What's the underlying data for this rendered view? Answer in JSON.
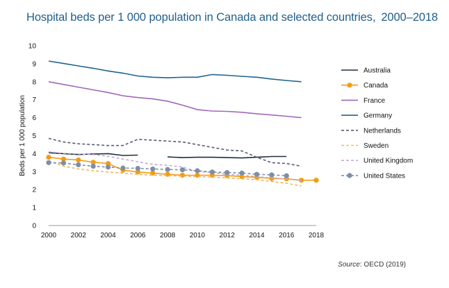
{
  "title": "Hospital beds per 1 000 population in Canada and selected countries,",
  "title_years": "2000–2018",
  "source": {
    "label": "Source",
    "text": ": OECD (2019)"
  },
  "chart_data": {
    "type": "line",
    "ylabel": "Beds per 1 000 population",
    "xlabel": "",
    "xlim": [
      2000,
      2018
    ],
    "ylim": [
      0,
      10
    ],
    "x_ticks": [
      2000,
      2002,
      2004,
      2006,
      2008,
      2010,
      2012,
      2014,
      2016,
      2018
    ],
    "y_ticks": [
      0,
      1,
      2,
      3,
      4,
      5,
      6,
      7,
      8,
      9,
      10
    ],
    "grid": false,
    "legend": "right",
    "series": [
      {
        "name": "Australia",
        "color": "#1d2e40",
        "style": "solid",
        "marker": false,
        "points": [
          [
            2000,
            4.05
          ],
          [
            2001,
            4.0
          ],
          [
            2002,
            3.95
          ],
          [
            2003,
            3.98
          ],
          [
            2004,
            4.0
          ],
          [
            2005,
            3.9
          ],
          [
            2006,
            3.92
          ],
          null,
          [
            2008,
            3.82
          ],
          [
            2009,
            3.78
          ],
          [
            2010,
            3.8
          ],
          [
            2011,
            3.8
          ],
          [
            2012,
            3.78
          ],
          [
            2013,
            3.76
          ],
          [
            2014,
            3.8
          ],
          [
            2015,
            3.84
          ],
          [
            2016,
            3.84
          ]
        ]
      },
      {
        "name": "Canada",
        "color": "#f39c12",
        "style": "solid",
        "marker": true,
        "points": [
          [
            2000,
            3.8
          ],
          [
            2001,
            3.7
          ],
          [
            2002,
            3.65
          ],
          [
            2003,
            3.52
          ],
          [
            2004,
            3.45
          ],
          [
            2005,
            3.08
          ],
          [
            2006,
            2.98
          ],
          [
            2007,
            2.92
          ],
          [
            2008,
            2.85
          ],
          [
            2009,
            2.8
          ],
          [
            2010,
            2.8
          ],
          [
            2011,
            2.8
          ],
          [
            2012,
            2.78
          ],
          [
            2013,
            2.72
          ],
          [
            2014,
            2.68
          ],
          [
            2015,
            2.62
          ],
          [
            2016,
            2.6
          ],
          [
            2017,
            2.52
          ],
          [
            2018,
            2.52
          ]
        ]
      },
      {
        "name": "France",
        "color": "#a066bb",
        "style": "solid",
        "marker": false,
        "points": [
          [
            2000,
            8.0
          ],
          [
            2001,
            7.85
          ],
          [
            2002,
            7.7
          ],
          [
            2003,
            7.55
          ],
          [
            2004,
            7.4
          ],
          [
            2005,
            7.22
          ],
          [
            2006,
            7.12
          ],
          [
            2007,
            7.05
          ],
          [
            2008,
            6.92
          ],
          [
            2009,
            6.7
          ],
          [
            2010,
            6.45
          ],
          [
            2011,
            6.37
          ],
          [
            2012,
            6.35
          ],
          [
            2013,
            6.3
          ],
          [
            2014,
            6.22
          ],
          [
            2015,
            6.15
          ],
          [
            2016,
            6.08
          ],
          [
            2017,
            6.0
          ]
        ]
      },
      {
        "name": "Germany",
        "color": "#1e6391",
        "style": "solid",
        "marker": false,
        "points": [
          [
            2000,
            9.15
          ],
          [
            2001,
            9.02
          ],
          [
            2002,
            8.88
          ],
          [
            2003,
            8.75
          ],
          [
            2004,
            8.6
          ],
          [
            2005,
            8.48
          ],
          [
            2006,
            8.32
          ],
          [
            2007,
            8.25
          ],
          [
            2008,
            8.22
          ],
          [
            2009,
            8.25
          ],
          [
            2010,
            8.25
          ],
          [
            2011,
            8.4
          ],
          [
            2012,
            8.36
          ],
          [
            2013,
            8.3
          ],
          [
            2014,
            8.25
          ],
          [
            2015,
            8.15
          ],
          [
            2016,
            8.07
          ],
          [
            2017,
            8.0
          ]
        ]
      },
      {
        "name": "Netherlands",
        "color": "#565775",
        "style": "dashed",
        "marker": false,
        "points": [
          [
            2000,
            4.85
          ],
          [
            2001,
            4.65
          ],
          [
            2002,
            4.55
          ],
          [
            2003,
            4.5
          ],
          [
            2004,
            4.45
          ],
          [
            2005,
            4.45
          ],
          [
            2006,
            4.8
          ],
          [
            2007,
            4.75
          ],
          [
            2008,
            4.7
          ],
          [
            2009,
            4.65
          ],
          [
            2010,
            4.5
          ],
          [
            2011,
            4.35
          ],
          [
            2012,
            4.2
          ],
          [
            2013,
            4.15
          ],
          [
            2014,
            3.8
          ],
          [
            2015,
            3.5
          ],
          [
            2016,
            3.45
          ],
          [
            2017,
            3.3
          ]
        ]
      },
      {
        "name": "Sweden",
        "color": "#f7b462",
        "style": "dashed",
        "marker": false,
        "points": [
          [
            2000,
            3.6
          ],
          [
            2001,
            3.3
          ],
          [
            2002,
            3.15
          ],
          [
            2003,
            3.05
          ],
          [
            2004,
            2.98
          ],
          [
            2005,
            2.92
          ],
          [
            2006,
            2.85
          ],
          [
            2007,
            2.8
          ],
          [
            2008,
            2.78
          ],
          [
            2009,
            2.75
          ],
          [
            2010,
            2.72
          ],
          [
            2011,
            2.7
          ],
          [
            2012,
            2.65
          ],
          [
            2013,
            2.6
          ],
          [
            2014,
            2.55
          ],
          [
            2015,
            2.45
          ],
          [
            2016,
            2.35
          ],
          [
            2017,
            2.2
          ]
        ]
      },
      {
        "name": "United Kingdom",
        "color": "#c3aad6",
        "style": "dashed",
        "marker": false,
        "points": [
          [
            2000,
            4.1
          ],
          [
            2001,
            4.02
          ],
          [
            2002,
            3.98
          ],
          [
            2003,
            3.95
          ],
          [
            2004,
            3.85
          ],
          [
            2005,
            3.7
          ],
          [
            2006,
            3.55
          ],
          [
            2007,
            3.4
          ],
          [
            2008,
            3.35
          ],
          [
            2009,
            3.25
          ],
          [
            2010,
            3.0
          ],
          [
            2011,
            2.95
          ],
          [
            2012,
            2.85
          ],
          [
            2013,
            2.8
          ],
          [
            2014,
            2.72
          ],
          [
            2015,
            2.65
          ],
          [
            2016,
            2.6
          ],
          [
            2017,
            2.5
          ]
        ]
      },
      {
        "name": "United States",
        "color": "#7d8fa6",
        "style": "dashed",
        "marker": true,
        "points": [
          [
            2000,
            3.5
          ],
          [
            2001,
            3.48
          ],
          [
            2002,
            3.38
          ],
          [
            2003,
            3.3
          ],
          [
            2004,
            3.25
          ],
          [
            2005,
            3.2
          ],
          [
            2006,
            3.18
          ],
          [
            2007,
            3.15
          ],
          [
            2008,
            3.12
          ],
          [
            2009,
            3.1
          ],
          [
            2010,
            3.05
          ],
          [
            2011,
            2.98
          ],
          [
            2012,
            2.95
          ],
          [
            2013,
            2.92
          ],
          [
            2014,
            2.85
          ],
          [
            2015,
            2.82
          ],
          [
            2016,
            2.77
          ]
        ]
      }
    ]
  }
}
